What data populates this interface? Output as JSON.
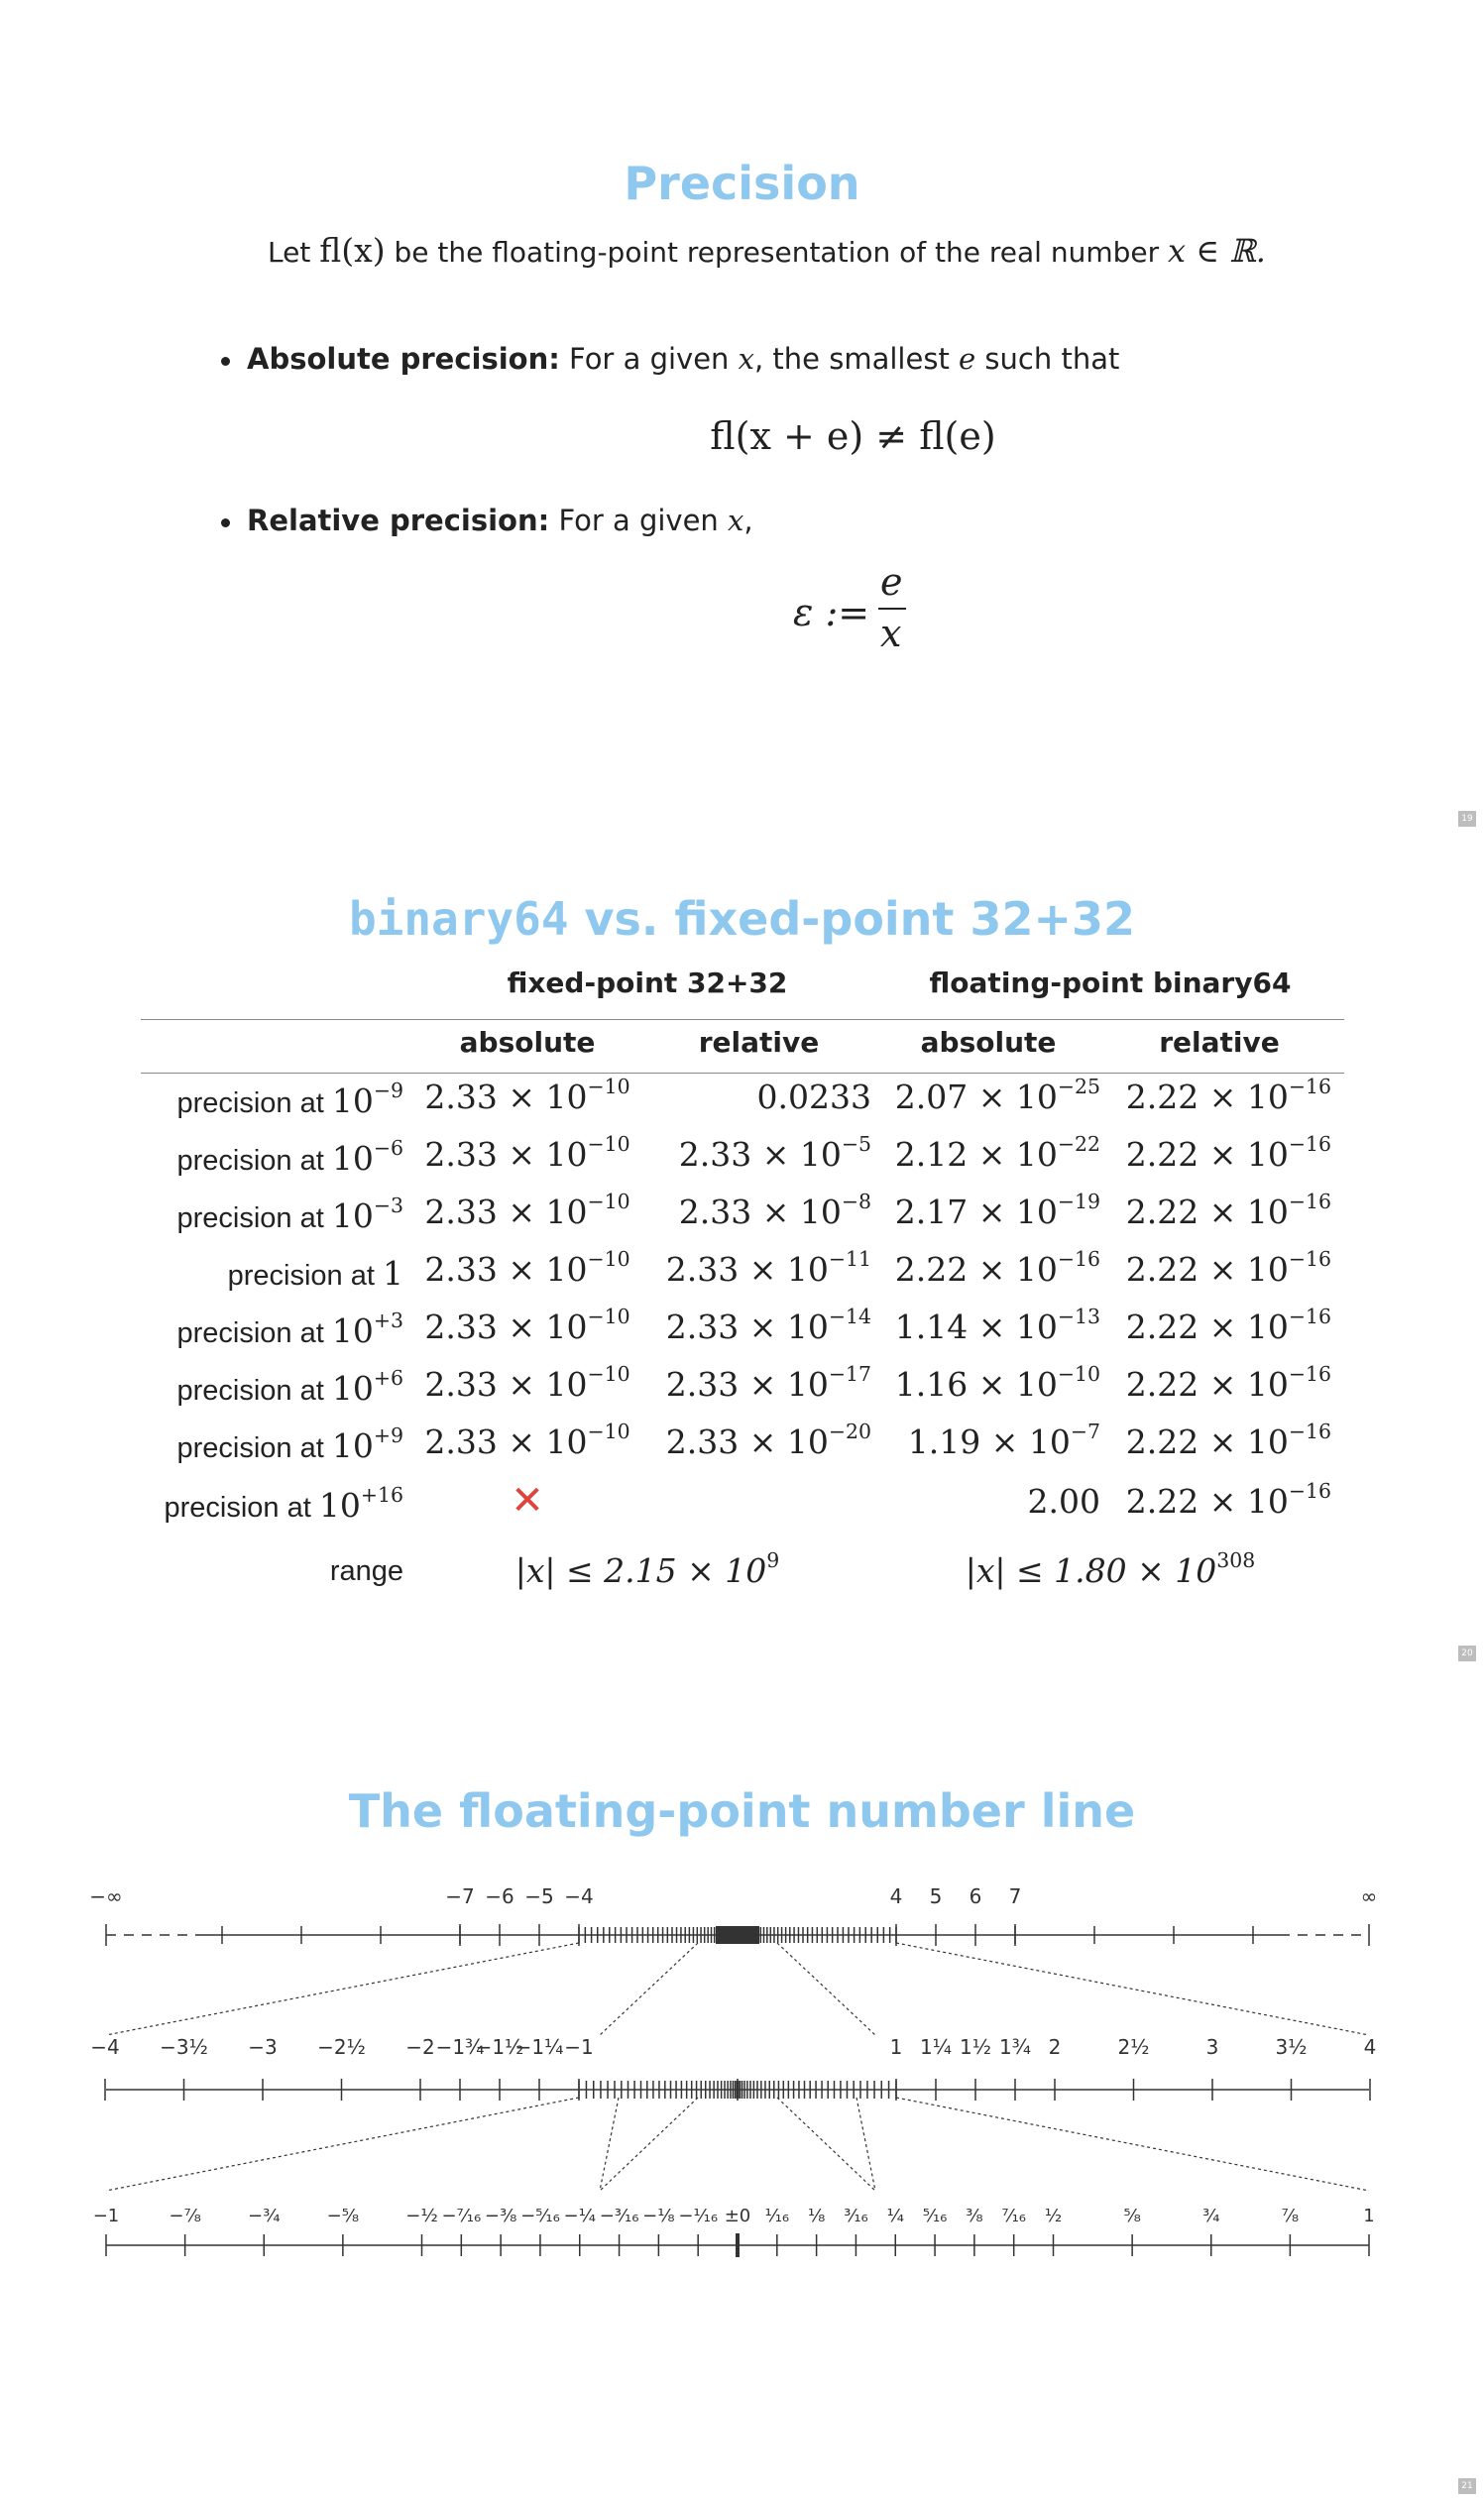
{
  "slide19": {
    "title": "Precision",
    "intro_let": "Let",
    "intro_fl": "fl(x)",
    "intro_mid": "be the floating-point representation of the real number",
    "intro_math": "x ∈ ℝ.",
    "bullet1_label": "Absolute precision:",
    "bullet1_text_a": "For a given",
    "bullet1_x": "x",
    "bullet1_text_b": ", the smallest",
    "bullet1_e": "e",
    "bullet1_text_c": "such that",
    "formula1": "fl(x + e) ≠ fl(e)",
    "bullet2_label": "Relative precision:",
    "bullet2_text_a": "For a given",
    "bullet2_x": "x",
    "bullet2_text_b": ",",
    "formula2_lhs": "ε :=",
    "formula2_num": "e",
    "formula2_den": "x",
    "page_number": "19"
  },
  "slide20": {
    "title_mono": "binary64",
    "title_rest": " vs. fixed-point 32+32",
    "group_fixed": "fixed-point 32+32",
    "group_float": "floating-point binary64",
    "col_headers": [
      "absolute",
      "relative",
      "absolute",
      "relative"
    ],
    "rows": [
      {
        "label": "precision at",
        "base": "10",
        "exp": "−9",
        "c1m": "2.33 × 10",
        "c1e": "−10",
        "c2m": "0.0233",
        "c2e": "",
        "c3m": "2.07 × 10",
        "c3e": "−25",
        "c4m": "2.22 × 10",
        "c4e": "−16"
      },
      {
        "label": "precision at",
        "base": "10",
        "exp": "−6",
        "c1m": "2.33 × 10",
        "c1e": "−10",
        "c2m": "2.33 × 10",
        "c2e": "−5",
        "c3m": "2.12 × 10",
        "c3e": "−22",
        "c4m": "2.22 × 10",
        "c4e": "−16"
      },
      {
        "label": "precision at",
        "base": "10",
        "exp": "−3",
        "c1m": "2.33 × 10",
        "c1e": "−10",
        "c2m": "2.33 × 10",
        "c2e": "−8",
        "c3m": "2.17 × 10",
        "c3e": "−19",
        "c4m": "2.22 × 10",
        "c4e": "−16"
      },
      {
        "label": "precision at",
        "base": "1",
        "exp": "",
        "c1m": "2.33 × 10",
        "c1e": "−10",
        "c2m": "2.33 × 10",
        "c2e": "−11",
        "c3m": "2.22 × 10",
        "c3e": "−16",
        "c4m": "2.22 × 10",
        "c4e": "−16"
      },
      {
        "label": "precision at",
        "base": "10",
        "exp": "+3",
        "c1m": "2.33 × 10",
        "c1e": "−10",
        "c2m": "2.33 × 10",
        "c2e": "−14",
        "c3m": "1.14 × 10",
        "c3e": "−13",
        "c4m": "2.22 × 10",
        "c4e": "−16"
      },
      {
        "label": "precision at",
        "base": "10",
        "exp": "+6",
        "c1m": "2.33 × 10",
        "c1e": "−10",
        "c2m": "2.33 × 10",
        "c2e": "−17",
        "c3m": "1.16 × 10",
        "c3e": "−10",
        "c4m": "2.22 × 10",
        "c4e": "−16"
      },
      {
        "label": "precision at",
        "base": "10",
        "exp": "+9",
        "c1m": "2.33 × 10",
        "c1e": "−10",
        "c2m": "2.33 × 10",
        "c2e": "−20",
        "c3m": "1.19 × 10",
        "c3e": "−7",
        "c4m": "2.22 × 10",
        "c4e": "−16"
      }
    ],
    "last_row": {
      "label": "precision at",
      "base": "10",
      "exp": "+16",
      "c1": "✕",
      "c3": "2.00",
      "c4m": "2.22 × 10",
      "c4e": "−16"
    },
    "range_label": "range",
    "range_fixed_m": "|x| ≤ 2.15 × 10",
    "range_fixed_e": "9",
    "range_float_m": "|x| ≤ 1.80 × 10",
    "range_float_e": "308",
    "page_number": "20"
  },
  "slide21": {
    "title": "The floating-point number line",
    "line1": {
      "neg_inf": "−∞",
      "pos_inf": "∞",
      "labels": [
        {
          "t": "−7",
          "v": -7
        },
        {
          "t": "−6",
          "v": -6
        },
        {
          "t": "−5",
          "v": -5
        },
        {
          "t": "−4",
          "v": -4
        },
        {
          "t": "4",
          "v": 4
        },
        {
          "t": "5",
          "v": 5
        },
        {
          "t": "6",
          "v": 6
        },
        {
          "t": "7",
          "v": 7
        }
      ]
    },
    "line2": {
      "labels": [
        {
          "t": "−4",
          "v": -4
        },
        {
          "t": "−3½",
          "v": -3.5
        },
        {
          "t": "−3",
          "v": -3
        },
        {
          "t": "−2½",
          "v": -2.5
        },
        {
          "t": "−2",
          "v": -2
        },
        {
          "t": "−1¾",
          "v": -1.75
        },
        {
          "t": "−1½",
          "v": -1.5
        },
        {
          "t": "−1¼",
          "v": -1.25
        },
        {
          "t": "−1",
          "v": -1
        },
        {
          "t": "1",
          "v": 1
        },
        {
          "t": "1¼",
          "v": 1.25
        },
        {
          "t": "1½",
          "v": 1.5
        },
        {
          "t": "1¾",
          "v": 1.75
        },
        {
          "t": "2",
          "v": 2
        },
        {
          "t": "2½",
          "v": 2.5
        },
        {
          "t": "3",
          "v": 3
        },
        {
          "t": "3½",
          "v": 3.5
        },
        {
          "t": "4",
          "v": 4
        }
      ]
    },
    "line3": {
      "labels": [
        {
          "t": "−1",
          "v": -1
        },
        {
          "t": "−⁷⁄₈",
          "v": -0.875
        },
        {
          "t": "−¾",
          "v": -0.75
        },
        {
          "t": "−⁵⁄₈",
          "v": -0.625
        },
        {
          "t": "−½",
          "v": -0.5
        },
        {
          "t": "−⁷⁄₁₆",
          "v": -0.4375
        },
        {
          "t": "−³⁄₈",
          "v": -0.375
        },
        {
          "t": "−⁵⁄₁₆",
          "v": -0.3125
        },
        {
          "t": "−¹⁄₄",
          "v": -0.25
        },
        {
          "t": "−³⁄₁₆",
          "v": -0.1875
        },
        {
          "t": "−¹⁄₈",
          "v": -0.125
        },
        {
          "t": "−¹⁄₁₆",
          "v": -0.0625
        },
        {
          "t": "±0",
          "v": 0
        },
        {
          "t": "¹⁄₁₆",
          "v": 0.0625
        },
        {
          "t": "¹⁄₈",
          "v": 0.125
        },
        {
          "t": "³⁄₁₆",
          "v": 0.1875
        },
        {
          "t": "¹⁄₄",
          "v": 0.25
        },
        {
          "t": "⁵⁄₁₆",
          "v": 0.3125
        },
        {
          "t": "³⁄₈",
          "v": 0.375
        },
        {
          "t": "⁷⁄₁₆",
          "v": 0.4375
        },
        {
          "t": "¹⁄₂",
          "v": 0.5
        },
        {
          "t": "⁵⁄₈",
          "v": 0.625
        },
        {
          "t": "³⁄₄",
          "v": 0.75
        },
        {
          "t": "⁷⁄₈",
          "v": 0.875
        },
        {
          "t": "1",
          "v": 1
        }
      ]
    },
    "page_number": "21"
  }
}
